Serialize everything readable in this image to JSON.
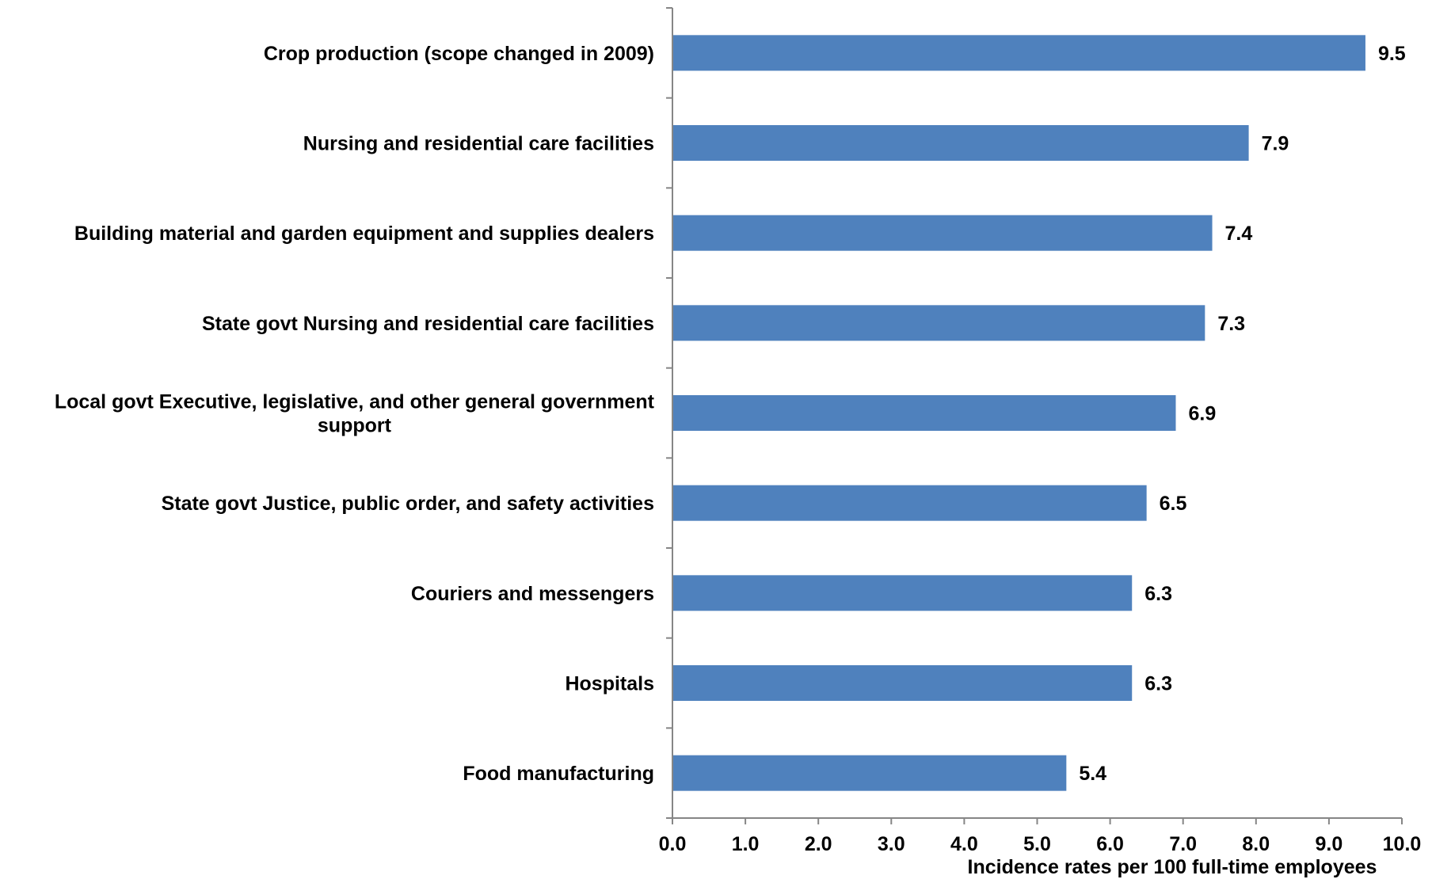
{
  "chart_data": {
    "type": "bar",
    "orientation": "horizontal",
    "title": "",
    "xlabel": "Incidence rates per 100 full-time employees",
    "ylabel": "",
    "xlim": [
      0,
      10
    ],
    "x_ticks": [
      "0.0",
      "1.0",
      "2.0",
      "3.0",
      "4.0",
      "5.0",
      "6.0",
      "7.0",
      "8.0",
      "9.0",
      "10.0"
    ],
    "categories": [
      [
        "Crop production (scope changed in 2009)"
      ],
      [
        "Nursing and residential care facilities"
      ],
      [
        "Building material and garden equipment and supplies dealers"
      ],
      [
        "State govt Nursing and residential care facilities"
      ],
      [
        "Local govt Executive, legislative, and other general government",
        "support"
      ],
      [
        "State govt Justice, public order, and safety activities"
      ],
      [
        "Couriers and messengers"
      ],
      [
        "Hospitals"
      ],
      [
        "Food manufacturing"
      ]
    ],
    "values": [
      9.5,
      7.9,
      7.4,
      7.3,
      6.9,
      6.5,
      6.3,
      6.3,
      5.4
    ],
    "value_labels": [
      "9.5",
      "7.9",
      "7.4",
      "7.3",
      "6.9",
      "6.5",
      "6.3",
      "6.3",
      "5.4"
    ],
    "bar_color": "#4F81BD",
    "axis_color": "#868686",
    "grid": false,
    "legend": "none"
  }
}
